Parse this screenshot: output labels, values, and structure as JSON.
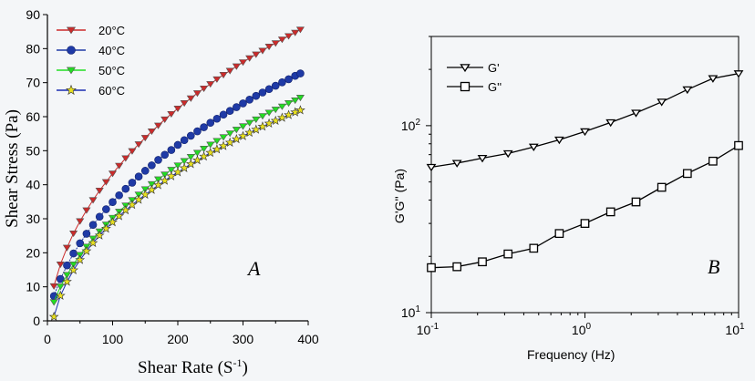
{
  "background": "#f4f6f8",
  "chart_data": [
    {
      "type": "scatter",
      "panel_label": "A",
      "xlabel": "Shear Rate (S",
      "xlabel_sup": "-1",
      "xlabel_tail": ")",
      "ylabel": "Shear Stress (Pa)",
      "xlim": [
        0,
        400
      ],
      "ylim": [
        0,
        90
      ],
      "x_ticks": [
        "0",
        "100",
        "200",
        "300",
        "400"
      ],
      "y_ticks": [
        "0",
        "10",
        "20",
        "30",
        "40",
        "50",
        "60",
        "70",
        "80",
        "90"
      ],
      "legend_position": "top-left",
      "x": [
        10,
        20,
        30,
        40,
        50,
        60,
        70,
        80,
        90,
        100,
        110,
        120,
        130,
        140,
        150,
        160,
        170,
        180,
        190,
        200,
        210,
        220,
        230,
        240,
        250,
        260,
        270,
        280,
        290,
        300,
        310,
        320,
        330,
        340,
        350,
        360,
        370,
        380,
        388
      ],
      "series": [
        {
          "name": "20°C",
          "color": "#cc2a2a",
          "marker": "triangle-down",
          "values": [
            10.2,
            16.6,
            21.5,
            25.7,
            29.3,
            32.5,
            35.5,
            38.3,
            40.8,
            43.3,
            45.6,
            47.8,
            49.9,
            51.9,
            53.8,
            55.7,
            57.4,
            59.2,
            60.8,
            62.4,
            64.0,
            65.4,
            66.9,
            68.3,
            69.6,
            71.0,
            72.3,
            73.5,
            74.8,
            76.0,
            77.2,
            78.3,
            79.4,
            80.6,
            81.6,
            82.7,
            83.7,
            84.7,
            85.6
          ]
        },
        {
          "name": "40°C",
          "color": "#1f3aa6",
          "marker": "circle",
          "values": [
            7.3,
            12.3,
            16.3,
            19.8,
            22.8,
            25.6,
            28.2,
            30.6,
            32.8,
            34.9,
            36.9,
            38.8,
            40.6,
            42.4,
            44.1,
            45.7,
            47.3,
            48.8,
            50.2,
            51.7,
            53.1,
            54.4,
            55.7,
            56.9,
            58.2,
            59.4,
            60.6,
            61.7,
            62.8,
            63.9,
            65.0,
            66.1,
            67.1,
            68.1,
            69.1,
            70.1,
            71.0,
            72.0,
            72.7
          ]
        },
        {
          "name": "50°C",
          "color": "#22dd22",
          "marker": "triangle-down",
          "values": [
            5.5,
            10.1,
            13.5,
            16.6,
            19.4,
            21.8,
            24.2,
            26.3,
            28.3,
            30.3,
            32.1,
            33.9,
            35.5,
            37.1,
            38.7,
            40.2,
            41.6,
            43.0,
            44.4,
            45.7,
            47.0,
            48.2,
            49.4,
            50.6,
            51.8,
            52.9,
            54.0,
            55.1,
            56.2,
            57.2,
            58.2,
            59.2,
            60.2,
            61.2,
            62.1,
            63.0,
            64.0,
            64.8,
            65.6
          ]
        },
        {
          "name": "60°C",
          "color": "#1a2db0",
          "marker": "star",
          "values": [
            1.2,
            7.4,
            11.5,
            14.9,
            17.9,
            20.5,
            22.9,
            25.1,
            27.1,
            29.0,
            30.8,
            32.5,
            34.1,
            35.6,
            37.1,
            38.5,
            39.9,
            41.2,
            42.5,
            43.7,
            44.9,
            46.1,
            47.2,
            48.3,
            49.4,
            50.4,
            51.4,
            52.4,
            53.4,
            54.3,
            55.3,
            56.2,
            57.1,
            58.0,
            58.8,
            59.7,
            60.5,
            61.3,
            61.9
          ]
        }
      ]
    },
    {
      "type": "line",
      "panel_label": "B",
      "xlabel": "Frequency (Hz)",
      "ylabel": "G'G'' (Pa)",
      "x_scale": "log",
      "y_scale": "log",
      "xlim": [
        0.1,
        10
      ],
      "ylim": [
        10,
        300
      ],
      "x_ticks": [
        {
          "base": "10",
          "exp": "-1"
        },
        {
          "base": "10",
          "exp": "0"
        },
        {
          "base": "10",
          "exp": "1"
        }
      ],
      "y_ticks": [
        {
          "base": "10",
          "exp": "1"
        },
        {
          "base": "10",
          "exp": "2"
        }
      ],
      "legend_position": "top-left",
      "x": [
        0.1,
        0.147,
        0.215,
        0.316,
        0.464,
        0.681,
        1.0,
        1.47,
        2.15,
        3.16,
        4.64,
        6.81,
        10.0
      ],
      "series": [
        {
          "name": "G'",
          "marker": "triangle-down",
          "values": [
            60,
            63,
            67,
            71,
            77,
            84,
            93,
            104,
            117,
            134,
            156,
            179,
            190
          ]
        },
        {
          "name": "G''",
          "marker": "square",
          "values": [
            17.4,
            17.6,
            18.7,
            20.6,
            22.1,
            26.5,
            30.0,
            34.6,
            39.1,
            46.8,
            55.5,
            64.6,
            78.3
          ]
        }
      ]
    }
  ]
}
